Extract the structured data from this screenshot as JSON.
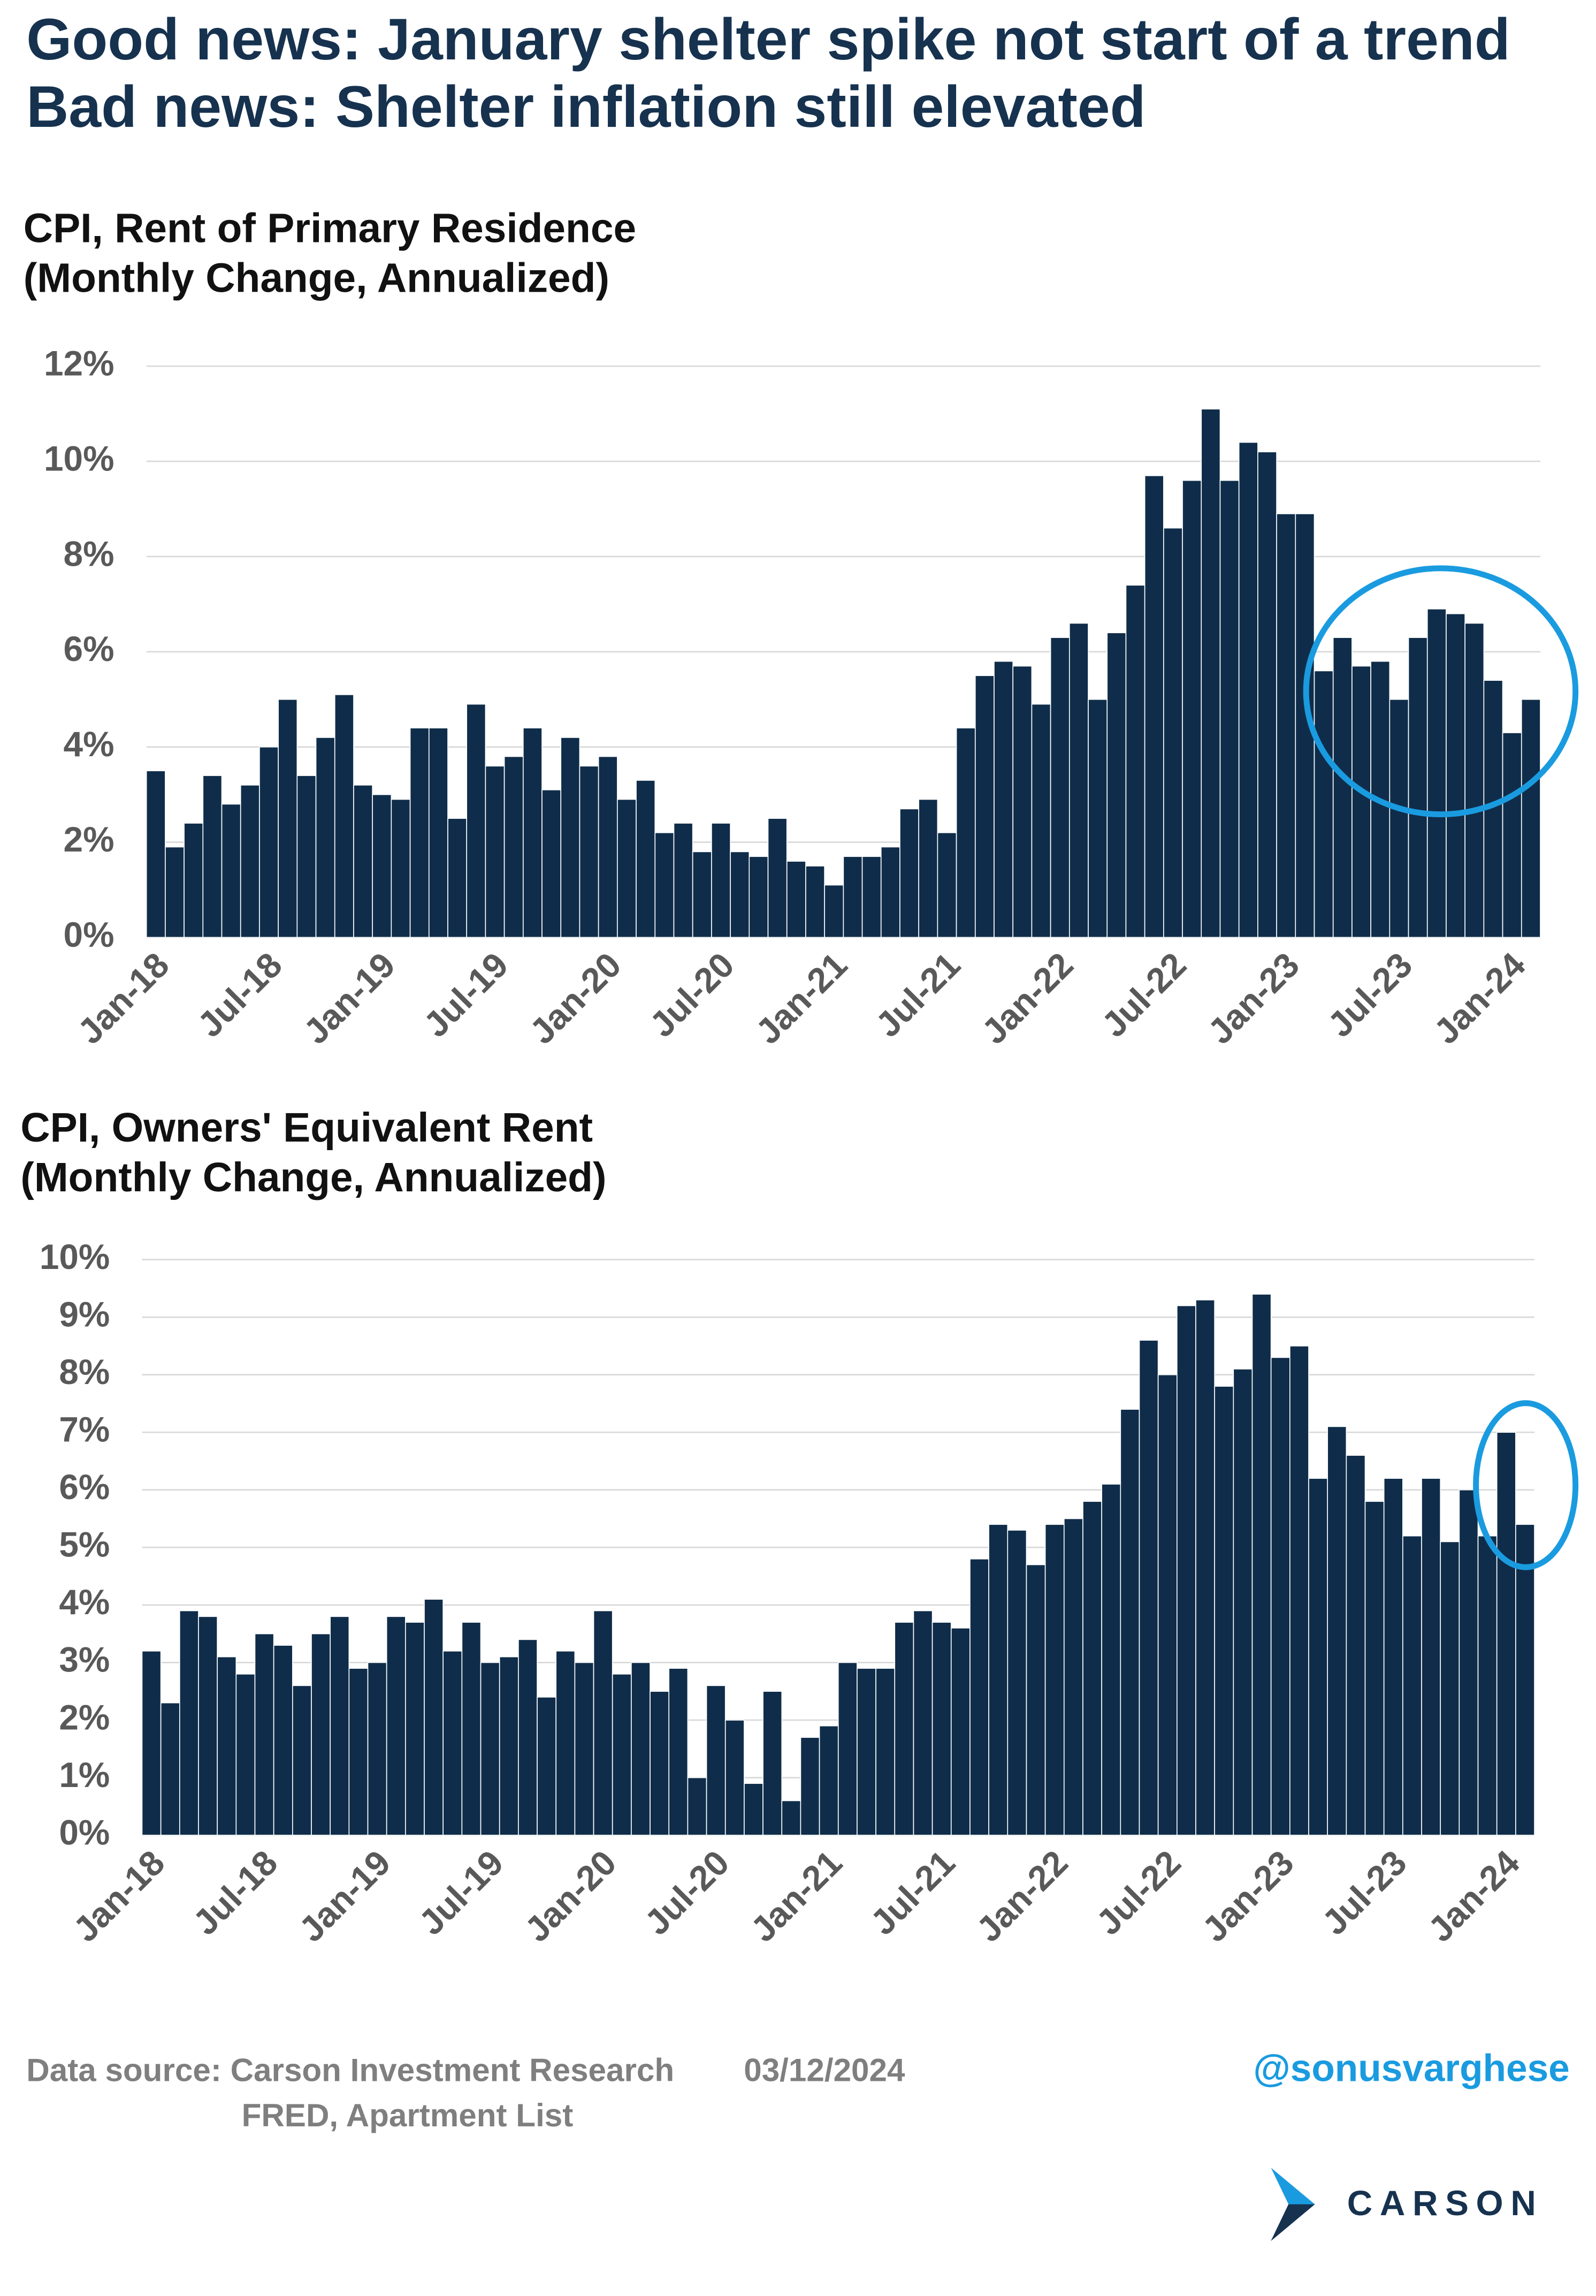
{
  "header": {
    "title_line1": "Good news: January shelter spike not start of a trend",
    "title_line2": "Bad news: Shelter inflation still elevated"
  },
  "chart_data": [
    {
      "type": "bar",
      "title": "CPI, Rent of Primary Residence",
      "subtitle": "(Monthly Change, Annualized)",
      "color": "#0f2d4a",
      "grid": true,
      "categories": [
        "Jan-18",
        null,
        null,
        null,
        null,
        null,
        "Jul-18",
        null,
        null,
        null,
        null,
        null,
        "Jan-19",
        null,
        null,
        null,
        null,
        null,
        "Jul-19",
        null,
        null,
        null,
        null,
        null,
        "Jan-20",
        null,
        null,
        null,
        null,
        null,
        "Jul-20",
        null,
        null,
        null,
        null,
        null,
        "Jan-21",
        null,
        null,
        null,
        null,
        null,
        "Jul-21",
        null,
        null,
        null,
        null,
        null,
        "Jan-22",
        null,
        null,
        null,
        null,
        null,
        "Jul-22",
        null,
        null,
        null,
        null,
        null,
        "Jan-23",
        null,
        null,
        null,
        null,
        null,
        "Jul-23",
        null,
        null,
        null,
        null,
        null,
        "Jan-24",
        null
      ],
      "values": [
        3.5,
        1.9,
        2.4,
        3.4,
        2.8,
        3.2,
        4.0,
        5.0,
        3.4,
        4.2,
        5.1,
        3.2,
        3.0,
        2.9,
        4.4,
        4.4,
        2.5,
        4.9,
        3.6,
        3.8,
        4.4,
        3.1,
        4.2,
        3.6,
        3.8,
        2.9,
        3.3,
        2.2,
        2.4,
        1.8,
        2.4,
        1.8,
        1.7,
        2.5,
        1.6,
        1.5,
        1.1,
        1.7,
        1.7,
        1.9,
        2.7,
        2.9,
        2.2,
        4.4,
        5.5,
        5.8,
        5.7,
        4.9,
        6.3,
        6.6,
        5.0,
        6.4,
        7.4,
        9.7,
        8.6,
        9.6,
        11.1,
        9.6,
        10.4,
        10.2,
        8.9,
        8.9,
        5.6,
        6.3,
        5.7,
        5.8,
        5.0,
        6.3,
        6.9,
        6.8,
        6.6,
        5.4,
        4.3,
        5.0
      ],
      "ylim": [
        0,
        12
      ],
      "yticks": [
        {
          "value": 0,
          "label": "0%"
        },
        {
          "value": 2,
          "label": "2%"
        },
        {
          "value": 4,
          "label": "4%"
        },
        {
          "value": 6,
          "label": "6%"
        },
        {
          "value": 8,
          "label": "8%"
        },
        {
          "value": 10,
          "label": "10%"
        },
        {
          "value": 12,
          "label": "12%"
        }
      ]
    },
    {
      "type": "bar",
      "title": "CPI, Owners' Equivalent Rent",
      "subtitle": "(Monthly Change, Annualized)",
      "color": "#0f2d4a",
      "grid": true,
      "categories": [
        "Jan-18",
        null,
        null,
        null,
        null,
        null,
        "Jul-18",
        null,
        null,
        null,
        null,
        null,
        "Jan-19",
        null,
        null,
        null,
        null,
        null,
        "Jul-19",
        null,
        null,
        null,
        null,
        null,
        "Jan-20",
        null,
        null,
        null,
        null,
        null,
        "Jul-20",
        null,
        null,
        null,
        null,
        null,
        "Jan-21",
        null,
        null,
        null,
        null,
        null,
        "Jul-21",
        null,
        null,
        null,
        null,
        null,
        "Jan-22",
        null,
        null,
        null,
        null,
        null,
        "Jul-22",
        null,
        null,
        null,
        null,
        null,
        "Jan-23",
        null,
        null,
        null,
        null,
        null,
        "Jul-23",
        null,
        null,
        null,
        null,
        null,
        "Jan-24",
        null
      ],
      "values": [
        3.2,
        2.3,
        3.9,
        3.8,
        3.1,
        2.8,
        3.5,
        3.3,
        2.6,
        3.5,
        3.8,
        2.9,
        3.0,
        3.8,
        3.7,
        4.1,
        3.2,
        3.7,
        3.0,
        3.1,
        3.4,
        2.4,
        3.2,
        3.0,
        3.9,
        2.8,
        3.0,
        2.5,
        2.9,
        1.0,
        2.6,
        2.0,
        0.9,
        2.5,
        0.6,
        1.7,
        1.9,
        3.0,
        2.9,
        2.9,
        3.7,
        3.9,
        3.7,
        3.6,
        4.8,
        5.4,
        5.3,
        4.7,
        5.4,
        5.5,
        5.8,
        6.1,
        7.4,
        8.6,
        8.0,
        9.2,
        9.3,
        7.8,
        8.1,
        9.4,
        8.3,
        8.5,
        6.2,
        7.1,
        6.6,
        5.8,
        6.2,
        5.2,
        6.2,
        5.1,
        6.0,
        5.2,
        7.0,
        5.4
      ],
      "ylim": [
        0,
        10
      ],
      "yticks": [
        {
          "value": 0,
          "label": "0%"
        },
        {
          "value": 1,
          "label": "1%"
        },
        {
          "value": 2,
          "label": "2%"
        },
        {
          "value": 3,
          "label": "3%"
        },
        {
          "value": 4,
          "label": "4%"
        },
        {
          "value": 5,
          "label": "5%"
        },
        {
          "value": 6,
          "label": "6%"
        },
        {
          "value": 7,
          "label": "7%"
        },
        {
          "value": 8,
          "label": "8%"
        },
        {
          "value": 9,
          "label": "9%"
        },
        {
          "value": 10,
          "label": "10%"
        }
      ]
    }
  ],
  "footer": {
    "source": "Data source: Carson Investment Research",
    "date": "03/12/2024",
    "source2": "FRED, Apartment List",
    "handle": "@sonusvarghese",
    "logo": "CARSON"
  }
}
